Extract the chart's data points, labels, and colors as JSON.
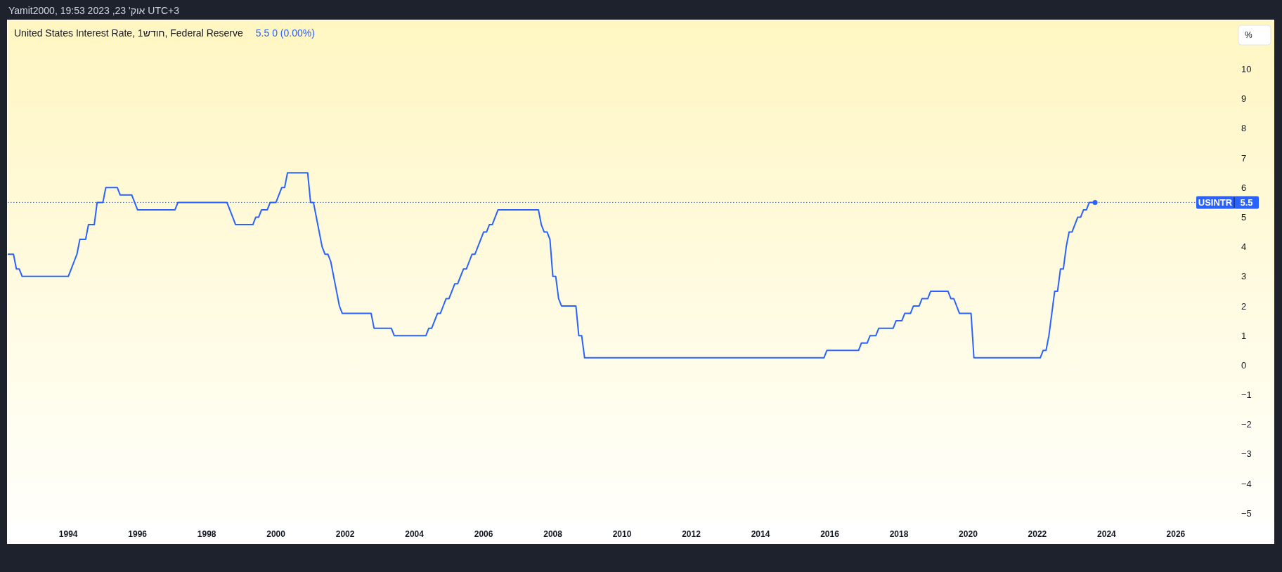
{
  "chart_data": {
    "type": "line",
    "title": "United States Interest Rate, 1חודש, Federal Reserve",
    "subtitle": "5.5 0 (0.00%)",
    "ylabel": "%",
    "annotations": [
      "Yamit2000, אוק' 23, 2023 19:53 UTC+3",
      {
        "text": "5.5",
        "y": 5.5
      }
    ],
    "xlim": [
      "1992-04",
      "2027-09"
    ],
    "ylim": [
      -5.35,
      11.65
    ],
    "xticks": [
      "1994",
      "1996",
      "1998",
      "2000",
      "2002",
      "2004",
      "2006",
      "2008",
      "2010",
      "2012",
      "2014",
      "2016",
      "2018",
      "2020",
      "2022",
      "2024",
      "2026"
    ],
    "yticks": [
      {
        "value": -5,
        "label": "−5"
      },
      {
        "value": -4,
        "label": "−4"
      },
      {
        "value": -3,
        "label": "−3"
      },
      {
        "value": -2,
        "label": "−2"
      },
      {
        "value": -1,
        "label": "−1"
      },
      0,
      1,
      2,
      3,
      4,
      5,
      6,
      7,
      8,
      9,
      10
    ],
    "ref_lines": [
      {
        "axis": "y",
        "value": 5.5,
        "label": "USINTR",
        "color": "#2962ff",
        "line_style": "dotted"
      }
    ],
    "series": [
      {
        "color": "#2962ff",
        "x": [
          "1992-04",
          "1992-06",
          "1992-07",
          "1992-08",
          "1992-09",
          "1994-01",
          "1994-02",
          "1994-03",
          "1994-04",
          "1994-05",
          "1994-07",
          "1994-08",
          "1994-10",
          "1994-11",
          "1995-01",
          "1995-02",
          "1995-06",
          "1995-07",
          "1995-11",
          "1995-12",
          "1996-01",
          "1997-02",
          "1997-03",
          "1998-08",
          "1998-09",
          "1998-10",
          "1998-11",
          "1999-05",
          "1999-06",
          "1999-07",
          "1999-08",
          "1999-10",
          "1999-11",
          "2000-01",
          "2000-02",
          "2000-03",
          "2000-04",
          "2000-05",
          "2000-12",
          "2001-01",
          "2001-02",
          "2001-03",
          "2001-04",
          "2001-05",
          "2001-06",
          "2001-07",
          "2001-08",
          "2001-09",
          "2001-10",
          "2001-11",
          "2001-12",
          "2002-10",
          "2002-11",
          "2003-05",
          "2003-06",
          "2004-05",
          "2004-06",
          "2004-07",
          "2004-08",
          "2004-09",
          "2004-10",
          "2004-11",
          "2004-12",
          "2005-01",
          "2005-02",
          "2005-03",
          "2005-04",
          "2005-05",
          "2005-06",
          "2005-07",
          "2005-08",
          "2005-09",
          "2005-10",
          "2005-11",
          "2005-12",
          "2006-01",
          "2006-02",
          "2006-03",
          "2006-04",
          "2006-05",
          "2006-06",
          "2007-08",
          "2007-09",
          "2007-10",
          "2007-11",
          "2007-12",
          "2008-01",
          "2008-02",
          "2008-03",
          "2008-04",
          "2008-09",
          "2008-10",
          "2008-11",
          "2008-12",
          "2015-11",
          "2015-12",
          "2016-11",
          "2016-12",
          "2017-02",
          "2017-03",
          "2017-05",
          "2017-06",
          "2017-11",
          "2017-12",
          "2018-02",
          "2018-03",
          "2018-05",
          "2018-06",
          "2018-08",
          "2018-09",
          "2018-11",
          "2018-12",
          "2019-06",
          "2019-07",
          "2019-08",
          "2019-09",
          "2019-10",
          "2020-02",
          "2020-03",
          "2022-02",
          "2022-03",
          "2022-04",
          "2022-05",
          "2022-06",
          "2022-07",
          "2022-08",
          "2022-09",
          "2022-10",
          "2022-11",
          "2022-12",
          "2023-01",
          "2023-02",
          "2023-03",
          "2023-04",
          "2023-05",
          "2023-06",
          "2023-07",
          "2023-09"
        ],
        "values": [
          3.75,
          3.75,
          3.25,
          3.25,
          3.0,
          3.0,
          3.25,
          3.5,
          3.75,
          4.25,
          4.25,
          4.75,
          4.75,
          5.5,
          5.5,
          6.0,
          6.0,
          5.75,
          5.75,
          5.5,
          5.25,
          5.25,
          5.5,
          5.5,
          5.25,
          5.0,
          4.75,
          4.75,
          5.0,
          5.0,
          5.25,
          5.25,
          5.5,
          5.5,
          5.75,
          6.0,
          6.0,
          6.5,
          6.5,
          5.5,
          5.5,
          5.0,
          4.5,
          4.0,
          3.75,
          3.75,
          3.5,
          3.0,
          2.5,
          2.0,
          1.75,
          1.75,
          1.25,
          1.25,
          1.0,
          1.0,
          1.25,
          1.25,
          1.5,
          1.75,
          1.75,
          2.0,
          2.25,
          2.25,
          2.5,
          2.75,
          2.75,
          3.0,
          3.25,
          3.25,
          3.5,
          3.75,
          3.75,
          4.0,
          4.25,
          4.5,
          4.5,
          4.75,
          4.75,
          5.0,
          5.25,
          5.25,
          4.75,
          4.5,
          4.5,
          4.25,
          3.0,
          3.0,
          2.25,
          2.0,
          2.0,
          1.0,
          1.0,
          0.25,
          0.25,
          0.5,
          0.5,
          0.75,
          0.75,
          1.0,
          1.0,
          1.25,
          1.25,
          1.5,
          1.5,
          1.75,
          1.75,
          2.0,
          2.0,
          2.25,
          2.25,
          2.5,
          2.5,
          2.25,
          2.25,
          2.0,
          1.75,
          1.75,
          0.25,
          0.25,
          0.5,
          0.5,
          1.0,
          1.75,
          2.5,
          2.5,
          3.25,
          3.25,
          4.0,
          4.5,
          4.5,
          4.75,
          5.0,
          5.0,
          5.25,
          5.25,
          5.5,
          5.5
        ]
      },
      {
        "type": "scatter",
        "color": "#2962ff",
        "x": [
          "2023-09"
        ],
        "values": [
          5.5
        ]
      }
    ]
  }
}
